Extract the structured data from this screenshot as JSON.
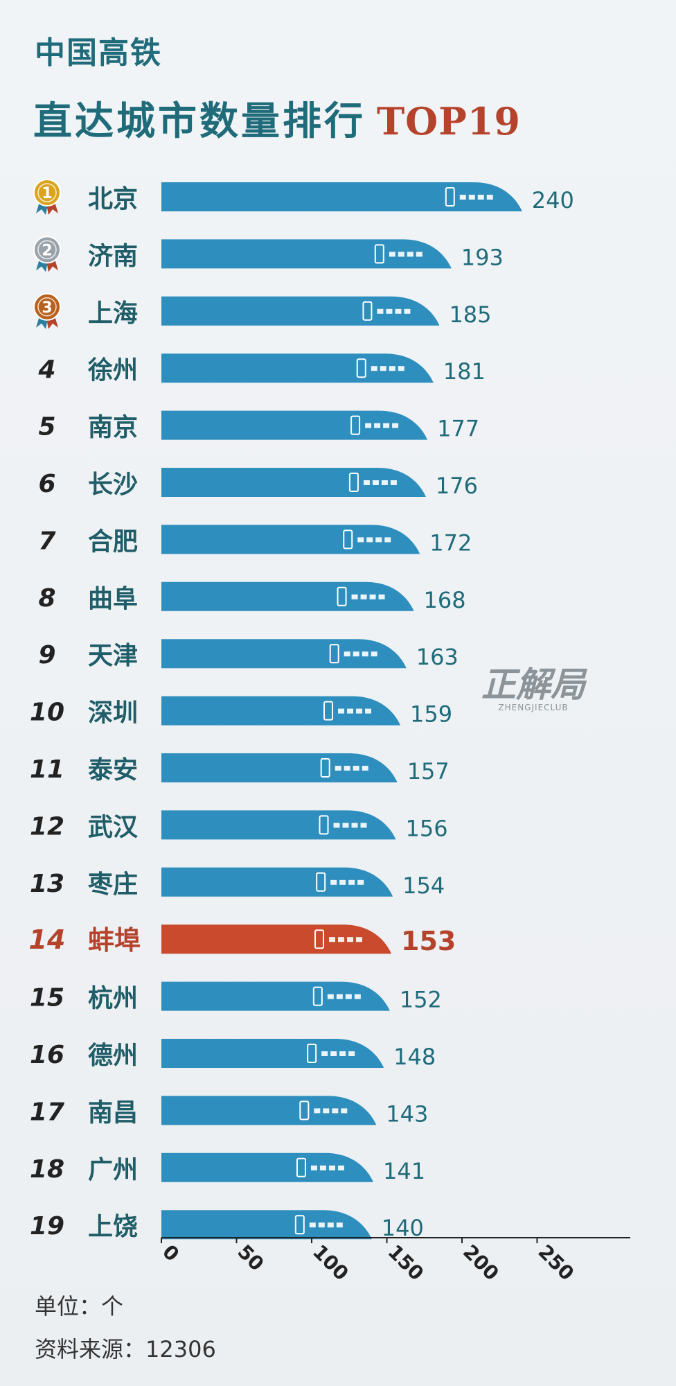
{
  "header": {
    "line1": "中国高铁",
    "line2": "直达城市数量排行",
    "badge": "TOP19"
  },
  "footer": {
    "unit": "单位：个",
    "source": "资料来源：12306"
  },
  "watermark": {
    "main": "正解局",
    "sub": "ZHENGJIECLUB"
  },
  "colors": {
    "bar": "#2e8fbe",
    "bar_highlight": "#c94a2c",
    "label": "#1f5d68",
    "value": "#1f6b7a",
    "value_highlight": "#b5422a",
    "gold": "#d9a520",
    "silver": "#9aa3aa",
    "bronze": "#b8621f"
  },
  "chart_data": {
    "type": "bar",
    "orientation": "horizontal",
    "categories": [
      "北京",
      "济南",
      "上海",
      "徐州",
      "南京",
      "长沙",
      "合肥",
      "曲阜",
      "天津",
      "深圳",
      "泰安",
      "武汉",
      "枣庄",
      "蚌埠",
      "杭州",
      "德州",
      "南昌",
      "广州",
      "上饶"
    ],
    "ranks": [
      "1",
      "2",
      "3",
      "4",
      "5",
      "6",
      "7",
      "8",
      "9",
      "10",
      "11",
      "12",
      "13",
      "14",
      "15",
      "16",
      "17",
      "18",
      "19"
    ],
    "values": [
      240,
      193,
      185,
      181,
      177,
      176,
      172,
      168,
      163,
      159,
      157,
      156,
      154,
      153,
      152,
      148,
      143,
      141,
      140
    ],
    "highlight_index": 13,
    "medals": [
      "gold",
      "silver",
      "bronze"
    ],
    "xlim": [
      0,
      300
    ],
    "xticks": [
      "0",
      "50",
      "100",
      "150",
      "200",
      "250"
    ],
    "xlabel": "",
    "ylabel": "",
    "grid": false,
    "legend": "none"
  }
}
